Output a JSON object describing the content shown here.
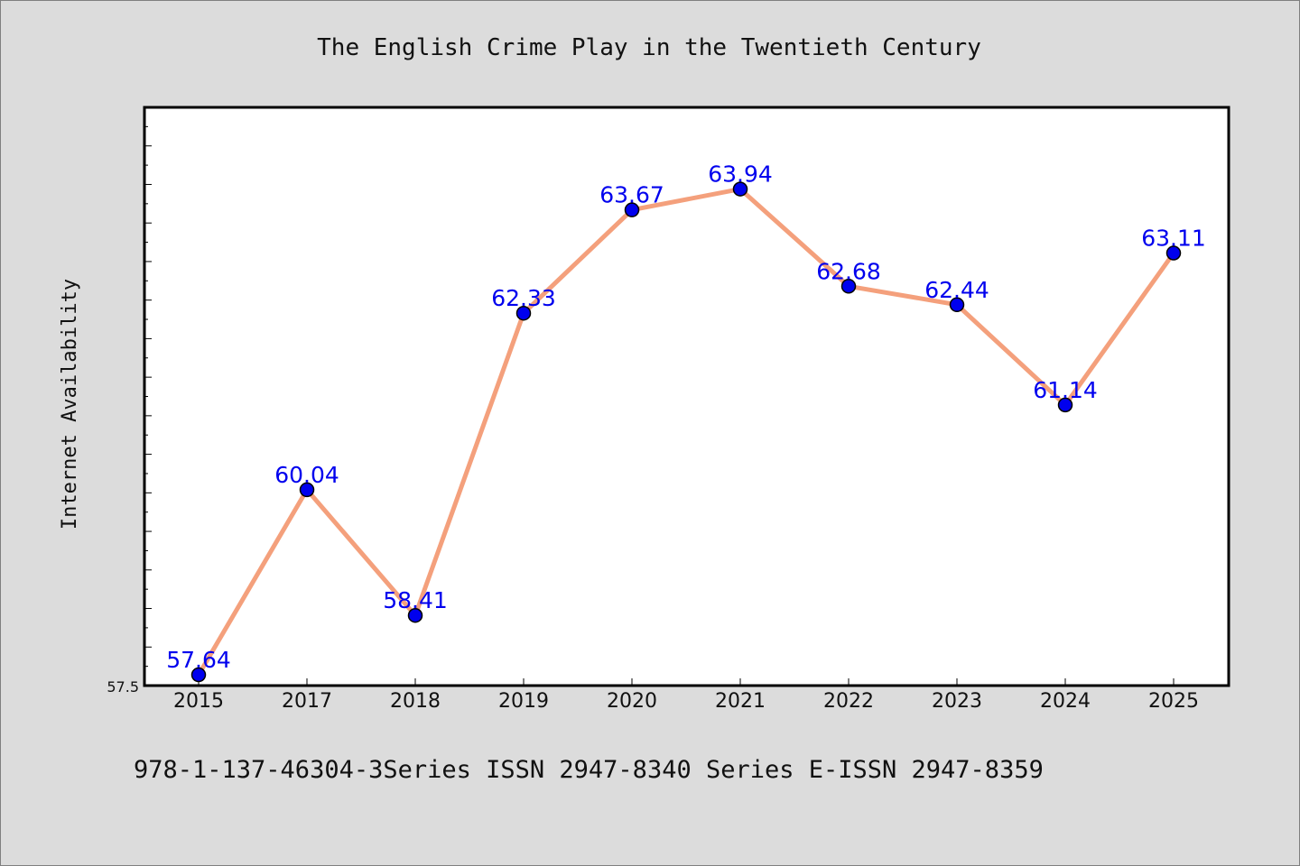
{
  "chart_data": {
    "type": "line",
    "title": "The English Crime Play in the Twentieth Century",
    "ylabel": "Internet Availability",
    "xlabel": "",
    "categories": [
      "2015",
      "2017",
      "2018",
      "2019",
      "2020",
      "2021",
      "2022",
      "2023",
      "2024",
      "2025"
    ],
    "values": [
      57.64,
      60.04,
      58.41,
      62.33,
      63.67,
      63.94,
      62.68,
      62.44,
      61.14,
      63.11
    ],
    "data_labels": [
      "57.64",
      "60.04",
      "58.41",
      "62.33",
      "63.67",
      "63.94",
      "62.68",
      "62.44",
      "61.14",
      "63.11"
    ],
    "ylim": [
      57.5,
      65.0
    ],
    "y_tick_labels": [
      "57.5"
    ],
    "grid": false,
    "legend": "none",
    "colors": {
      "line": "#f4a07c",
      "marker": "#0000ee",
      "data_label": "#0000ee",
      "plot_background": "#ffffff",
      "page_background": "#dcdcdc"
    }
  },
  "footer": "978-1-137-46304-3Series ISSN 2947-8340 Series E-ISSN 2947-8359"
}
